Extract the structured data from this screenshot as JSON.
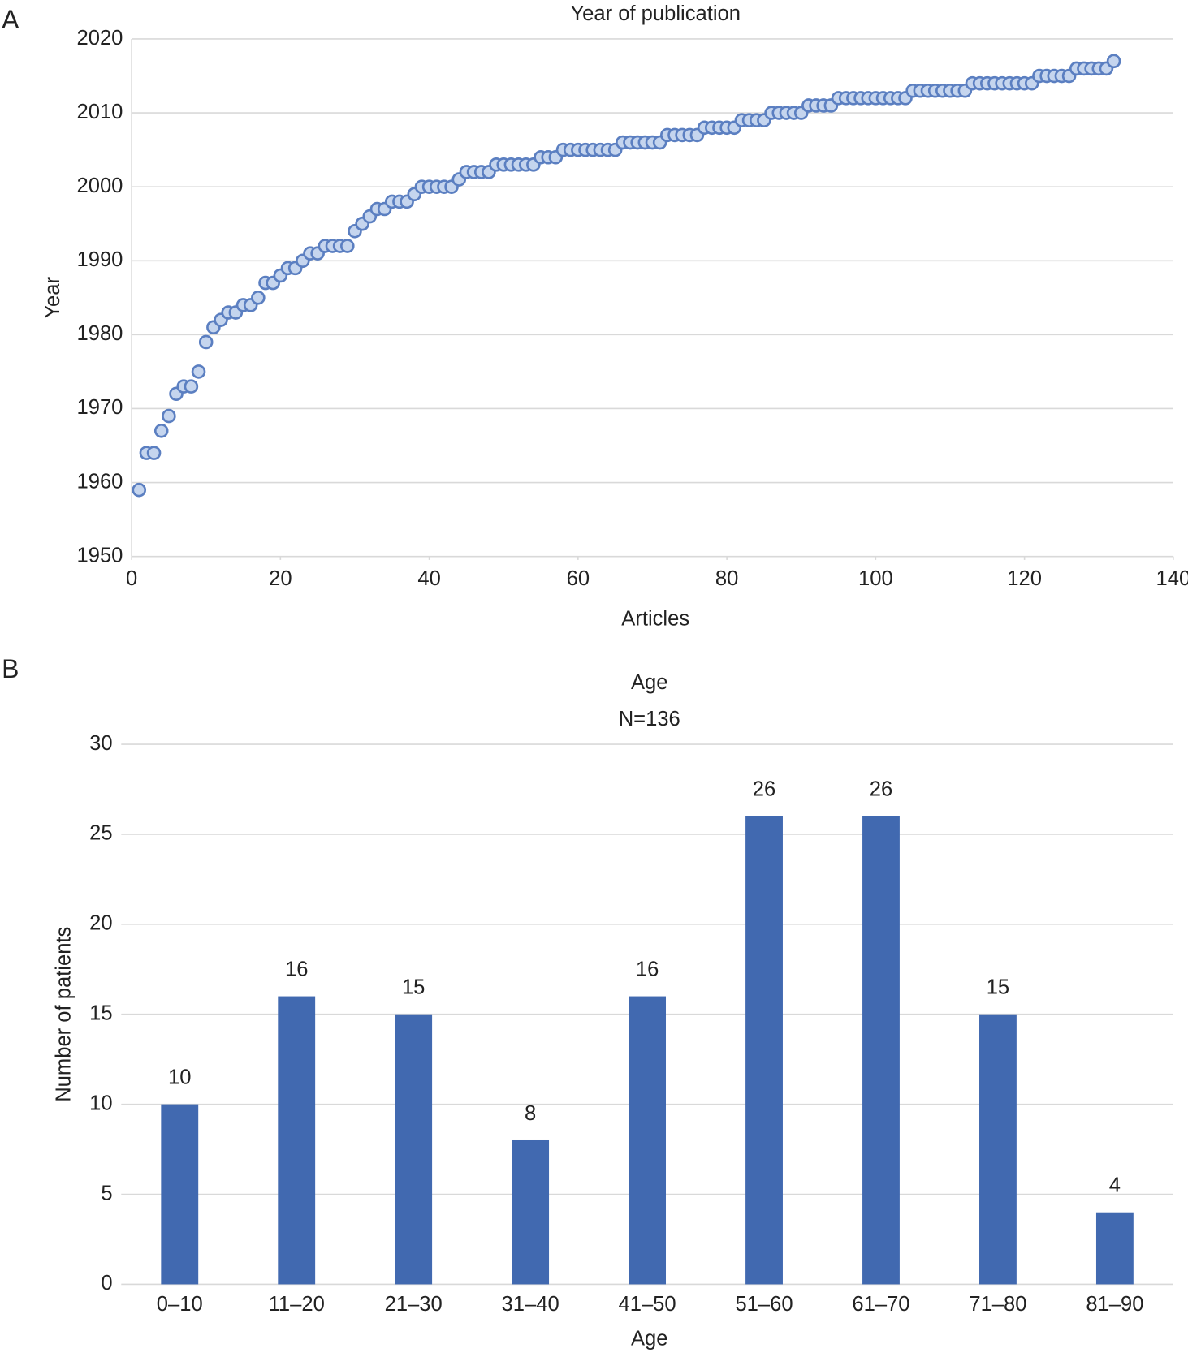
{
  "chart_data": [
    {
      "type": "scatter",
      "panel": "A",
      "title": "Year of publication",
      "x_label": "Articles",
      "y_label": "Year",
      "color": "#c5d5ee",
      "edge_color": "#5b7fc1",
      "grid": true,
      "xlim": [
        0,
        140
      ],
      "xticks": [
        0,
        20,
        40,
        60,
        80,
        100,
        120,
        140
      ],
      "ylim": [
        1950,
        2020
      ],
      "yticks": [
        1950,
        1960,
        1970,
        1980,
        1990,
        2000,
        2010,
        2020
      ],
      "x": [
        1,
        2,
        3,
        4,
        5,
        6,
        7,
        8,
        9,
        10,
        11,
        12,
        13,
        14,
        15,
        16,
        17,
        18,
        19,
        20,
        21,
        22,
        23,
        24,
        25,
        26,
        27,
        28,
        29,
        30,
        31,
        32,
        33,
        34,
        35,
        36,
        37,
        38,
        39,
        40,
        41,
        42,
        43,
        44,
        45,
        46,
        47,
        48,
        49,
        50,
        51,
        52,
        53,
        54,
        55,
        56,
        57,
        58,
        59,
        60,
        61,
        62,
        63,
        64,
        65,
        66,
        67,
        68,
        69,
        70,
        71,
        72,
        73,
        74,
        75,
        76,
        77,
        78,
        79,
        80,
        81,
        82,
        83,
        84,
        85,
        86,
        87,
        88,
        89,
        90,
        91,
        92,
        93,
        94,
        95,
        96,
        97,
        98,
        99,
        100,
        101,
        102,
        103,
        104,
        105,
        106,
        107,
        108,
        109,
        110,
        111,
        112,
        113,
        114,
        115,
        116,
        117,
        118,
        119,
        120,
        121,
        122,
        123,
        124,
        125,
        126,
        127,
        128,
        129,
        130,
        131,
        132
      ],
      "values": [
        1959,
        1964,
        1964,
        1967,
        1969,
        1972,
        1973,
        1973,
        1975,
        1979,
        1981,
        1982,
        1983,
        1983,
        1984,
        1984,
        1985,
        1987,
        1987,
        1988,
        1989,
        1989,
        1990,
        1991,
        1991,
        1992,
        1992,
        1992,
        1992,
        1994,
        1995,
        1996,
        1997,
        1997,
        1998,
        1998,
        1998,
        1999,
        2000,
        2000,
        2000,
        2000,
        2000,
        2001,
        2002,
        2002,
        2002,
        2002,
        2003,
        2003,
        2003,
        2003,
        2003,
        2003,
        2004,
        2004,
        2004,
        2005,
        2005,
        2005,
        2005,
        2005,
        2005,
        2005,
        2005,
        2006,
        2006,
        2006,
        2006,
        2006,
        2006,
        2007,
        2007,
        2007,
        2007,
        2007,
        2008,
        2008,
        2008,
        2008,
        2008,
        2009,
        2009,
        2009,
        2009,
        2010,
        2010,
        2010,
        2010,
        2010,
        2011,
        2011,
        2011,
        2011,
        2012,
        2012,
        2012,
        2012,
        2012,
        2012,
        2012,
        2012,
        2012,
        2012,
        2013,
        2013,
        2013,
        2013,
        2013,
        2013,
        2013,
        2013,
        2014,
        2014,
        2014,
        2014,
        2014,
        2014,
        2014,
        2014,
        2014,
        2015,
        2015,
        2015,
        2015,
        2015,
        2016,
        2016,
        2016,
        2016,
        2016,
        2017
      ]
    },
    {
      "type": "bar",
      "panel": "B",
      "title": "Age",
      "subtitle": "N=136",
      "x_label": "Age",
      "y_label": "Number of patients",
      "color": "#4169b0",
      "grid": true,
      "ylim": [
        0,
        30
      ],
      "yticks": [
        0,
        5,
        10,
        15,
        20,
        25,
        30
      ],
      "categories": [
        "0–10",
        "11–20",
        "21–30",
        "31–40",
        "41–50",
        "51–60",
        "61–70",
        "71–80",
        "81–90"
      ],
      "values": [
        10,
        16,
        15,
        8,
        16,
        26,
        26,
        15,
        4
      ]
    }
  ]
}
